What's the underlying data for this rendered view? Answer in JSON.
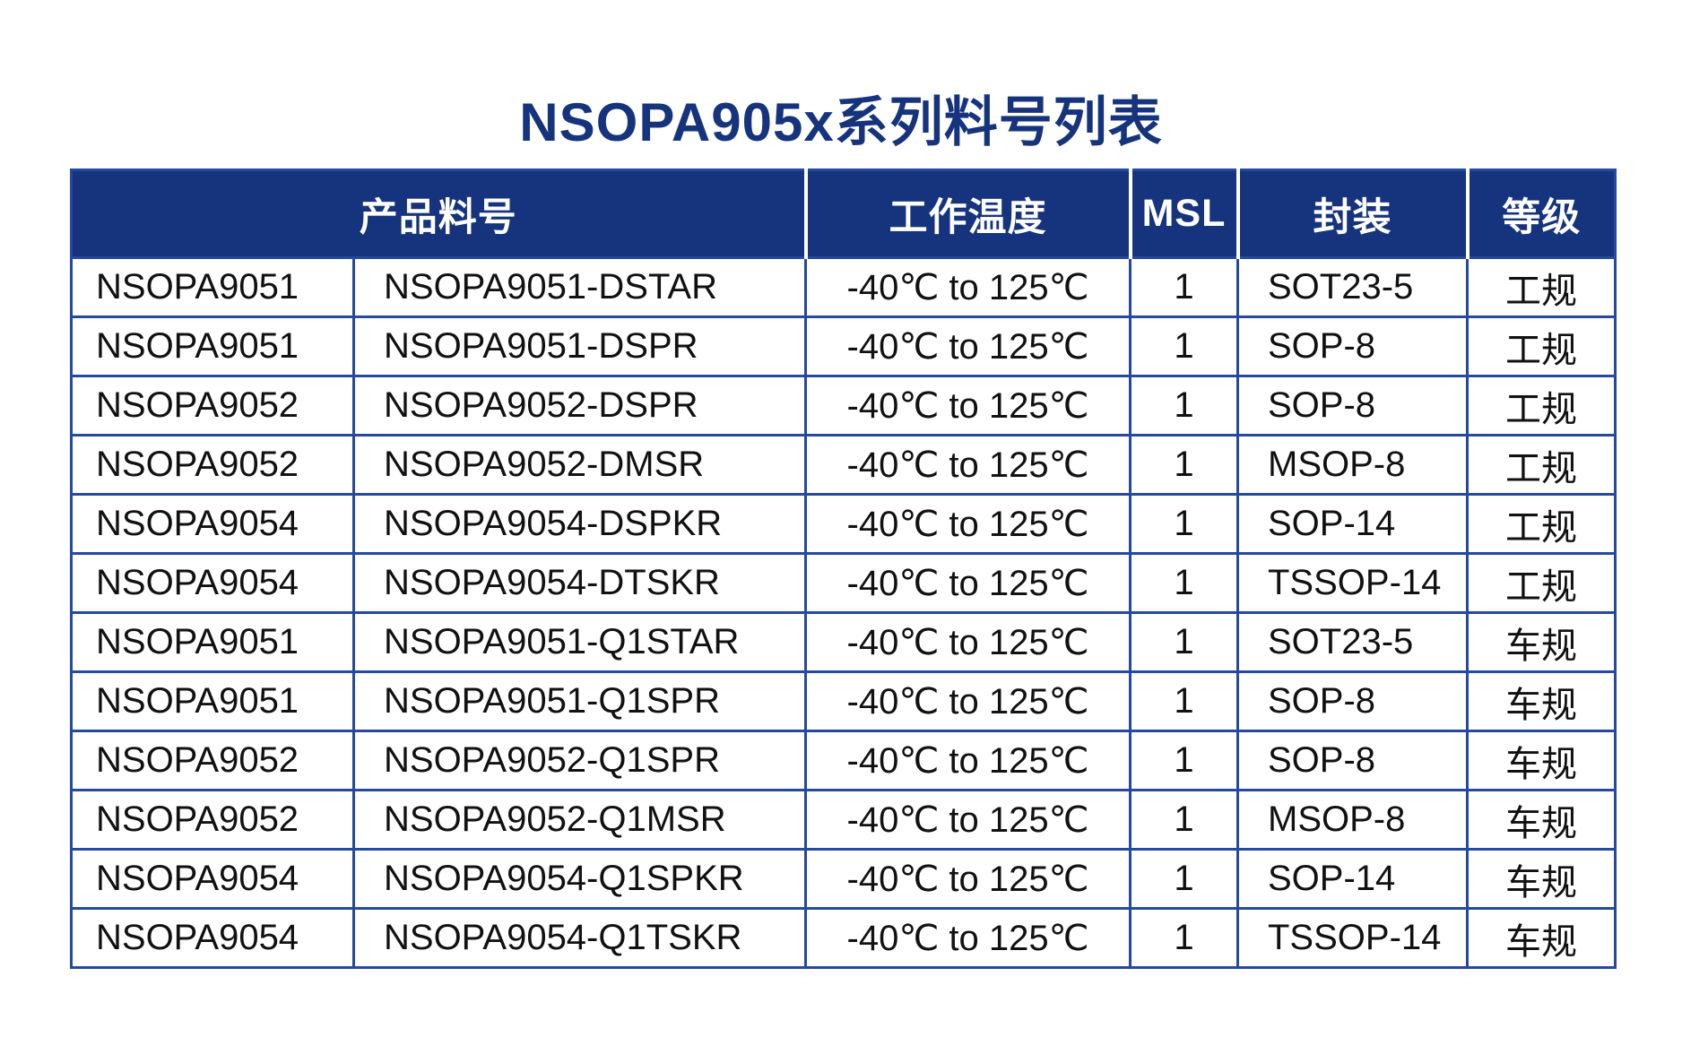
{
  "title": "NSOPA905x系列料号列表",
  "colors": {
    "header_bg": "#16337e",
    "header_text": "#ffffff",
    "border_blue": "#24499e",
    "title_blue": "#16337e",
    "cell_text": "#111111"
  },
  "table": {
    "headers": {
      "product_part_number": "产品料号",
      "operating_temperature": "工作温度",
      "msl": "MSL",
      "package": "封装",
      "grade": "等级"
    },
    "rows": [
      [
        "NSOPA9051",
        "NSOPA9051-DSTAR",
        "-40℃ to 125℃",
        "1",
        "SOT23-5",
        "工规"
      ],
      [
        "NSOPA9051",
        "NSOPA9051-DSPR",
        "-40℃ to 125℃",
        "1",
        "SOP-8",
        "工规"
      ],
      [
        "NSOPA9052",
        "NSOPA9052-DSPR",
        "-40℃ to 125℃",
        "1",
        "SOP-8",
        "工规"
      ],
      [
        "NSOPA9052",
        "NSOPA9052-DMSR",
        "-40℃ to 125℃",
        "1",
        "MSOP-8",
        "工规"
      ],
      [
        "NSOPA9054",
        "NSOPA9054-DSPKR",
        "-40℃ to 125℃",
        "1",
        "SOP-14",
        "工规"
      ],
      [
        "NSOPA9054",
        "NSOPA9054-DTSKR",
        "-40℃ to 125℃",
        "1",
        "TSSOP-14",
        "工规"
      ],
      [
        "NSOPA9051",
        "NSOPA9051-Q1STAR",
        "-40℃ to 125℃",
        "1",
        "SOT23-5",
        "车规"
      ],
      [
        "NSOPA9051",
        "NSOPA9051-Q1SPR",
        "-40℃ to 125℃",
        "1",
        "SOP-8",
        "车规"
      ],
      [
        "NSOPA9052",
        "NSOPA9052-Q1SPR",
        "-40℃ to 125℃",
        "1",
        "SOP-8",
        "车规"
      ],
      [
        "NSOPA9052",
        "NSOPA9052-Q1MSR",
        "-40℃ to 125℃",
        "1",
        "MSOP-8",
        "车规"
      ],
      [
        "NSOPA9054",
        "NSOPA9054-Q1SPKR",
        "-40℃ to 125℃",
        "1",
        "SOP-14",
        "车规"
      ],
      [
        "NSOPA9054",
        "NSOPA9054-Q1TSKR",
        "-40℃ to 125℃",
        "1",
        "TSSOP-14",
        "车规"
      ]
    ]
  }
}
